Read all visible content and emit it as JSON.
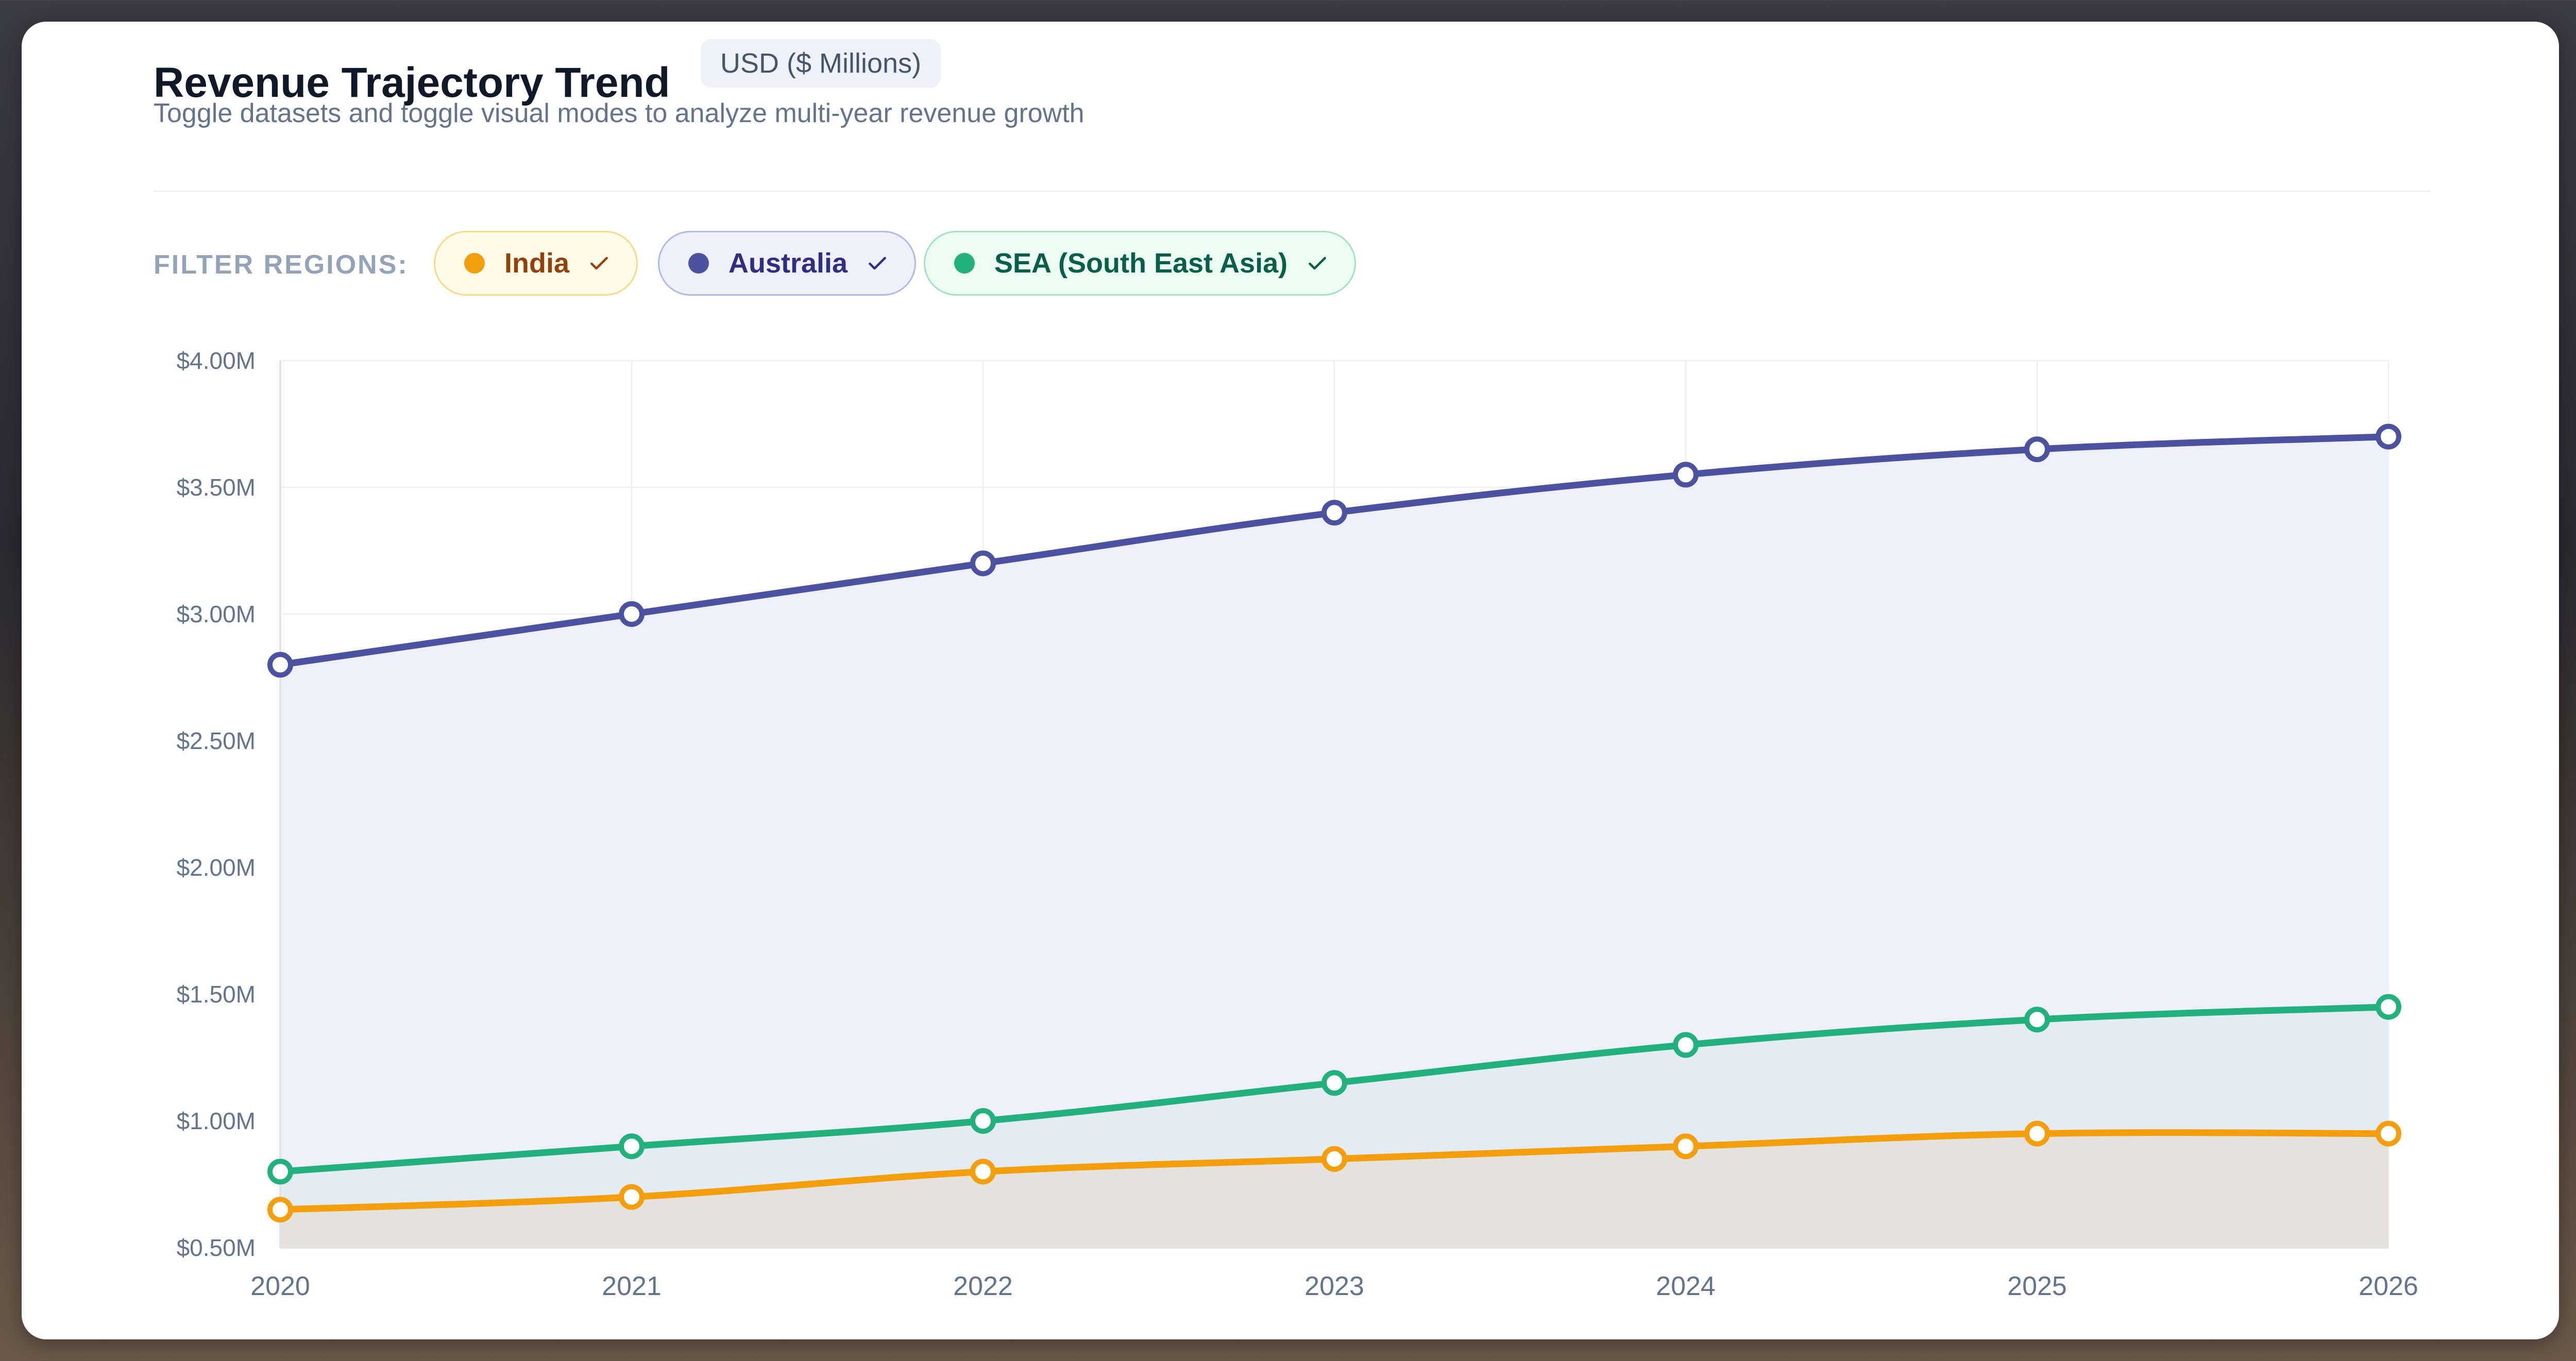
{
  "header": {
    "title": "Revenue Trajectory Trend",
    "badge": "USD ($ Millions)",
    "subtitle": "Toggle datasets and toggle visual modes to analyze multi-year revenue growth"
  },
  "filters": {
    "label": "FILTER REGIONS:",
    "chips": [
      {
        "label": "India",
        "color": "#f59e0b",
        "active": true
      },
      {
        "label": "Australia",
        "color": "#4c51a0",
        "active": true
      },
      {
        "label": "SEA (South East Asia)",
        "color": "#22b07d",
        "active": true
      }
    ]
  },
  "chart_data": {
    "type": "area",
    "x": [
      "2020",
      "2021",
      "2022",
      "2023",
      "2024",
      "2025",
      "2026"
    ],
    "ylim": [
      0.5,
      4.0
    ],
    "yticks": [
      0.5,
      1.0,
      1.5,
      2.0,
      2.5,
      3.0,
      3.5,
      4.0
    ],
    "ytick_labels": [
      "$0.50M",
      "$1.00M",
      "$1.50M",
      "$2.00M",
      "$2.50M",
      "$3.00M",
      "$3.50M",
      "$4.00M"
    ],
    "grid": true,
    "series": [
      {
        "name": "Australia",
        "color": "#4c51a0",
        "fill": "#efeff9",
        "values": [
          2.8,
          3.0,
          3.2,
          3.4,
          3.55,
          3.65,
          3.7
        ]
      },
      {
        "name": "SEA (South East Asia)",
        "color": "#22b07d",
        "fill": "#e3ecf2",
        "values": [
          0.8,
          0.9,
          1.0,
          1.15,
          1.3,
          1.4,
          1.45
        ]
      },
      {
        "name": "India",
        "color": "#f59e0b",
        "fill": "#e3e3dc",
        "values": [
          0.65,
          0.7,
          0.8,
          0.85,
          0.9,
          0.95,
          0.95
        ]
      }
    ]
  }
}
